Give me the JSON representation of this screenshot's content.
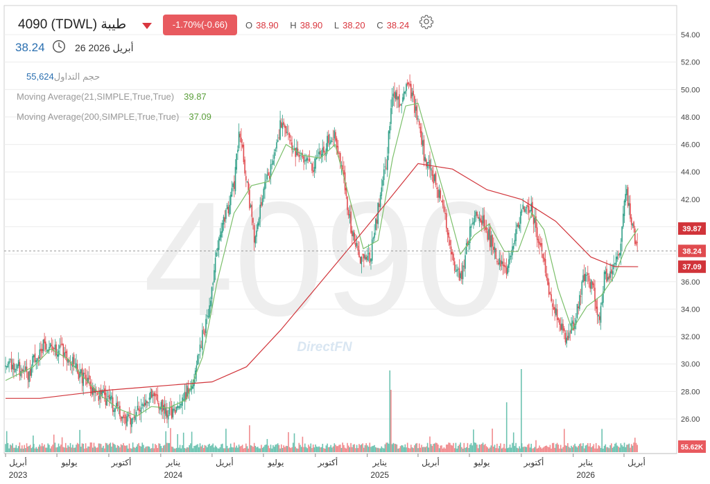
{
  "header": {
    "symbol": "4090  (TDWL)  طيبة",
    "change": "-1.70%(-0.66)",
    "ohlc": [
      {
        "k": "O",
        "v": "38.90"
      },
      {
        "k": "H",
        "v": "38.90"
      },
      {
        "k": "L",
        "v": "38.20"
      },
      {
        "k": "C",
        "v": "38.24"
      }
    ],
    "last_price": "38.24",
    "date": "26 أبريل 2026"
  },
  "indicators": {
    "volume_label": "حجم التداول",
    "volume_value": "55,624",
    "ma21_label": "Moving Average(21,SIMPLE,True,True)",
    "ma21_value": "39.87",
    "ma200_label": "Moving Average(200,SIMPLE,True,True)",
    "ma200_value": "37.09"
  },
  "watermark": {
    "big": "4090",
    "brand": "DirectFN"
  },
  "tags": {
    "ma21": "39.87",
    "last": "38.24",
    "ma200": "37.09",
    "volume": "55.62K"
  },
  "colors": {
    "up": "#2e9e86",
    "down": "#e04b4f",
    "ma21": "#7bbf6a",
    "ma200": "#d1343a",
    "accent_blue": "#2a6fb0",
    "volume_up": "#6cc2b0",
    "volume_down": "#f08a8d"
  },
  "chart_data": {
    "type": "candlestick",
    "y_ticks": [
      "26.00",
      "28.00",
      "30.00",
      "32.00",
      "34.00",
      "36.00",
      "38.00",
      "40.00",
      "42.00",
      "44.00",
      "46.00",
      "48.00",
      "50.00",
      "52.00",
      "54.00"
    ],
    "ylim": [
      24.7,
      55.7
    ],
    "x_axis": [
      {
        "month": "أبريل",
        "year": "2023",
        "date": "2023-04-01"
      },
      {
        "month": "يوليو",
        "year": "",
        "date": "2023-07-01"
      },
      {
        "month": "أكتوبر",
        "year": "",
        "date": "2023-10-01"
      },
      {
        "month": "يناير",
        "year": "2024",
        "date": "2024-01-01"
      },
      {
        "month": "أبريل",
        "year": "",
        "date": "2024-04-01"
      },
      {
        "month": "يوليو",
        "year": "",
        "date": "2024-07-01"
      },
      {
        "month": "أكتوبر",
        "year": "",
        "date": "2024-10-01"
      },
      {
        "month": "يناير",
        "year": "2025",
        "date": "2025-01-01"
      },
      {
        "month": "أبريل",
        "year": "",
        "date": "2025-04-01"
      },
      {
        "month": "يوليو",
        "year": "",
        "date": "2025-07-01"
      },
      {
        "month": "أكتوبر",
        "year": "",
        "date": "2025-10-01"
      },
      {
        "month": "يناير",
        "year": "2026",
        "date": "2026-01-01"
      },
      {
        "month": "أبريل",
        "year": "",
        "date": "2026-04-01"
      }
    ],
    "close_path": [
      {
        "date": "2023-04-01",
        "close": 29.8
      },
      {
        "date": "2023-04-20",
        "close": 29.9
      },
      {
        "date": "2023-05-10",
        "close": 29.2
      },
      {
        "date": "2023-05-25",
        "close": 30.6
      },
      {
        "date": "2023-06-10",
        "close": 31.6
      },
      {
        "date": "2023-06-25",
        "close": 31.2
      },
      {
        "date": "2023-07-15",
        "close": 30.8
      },
      {
        "date": "2023-08-05",
        "close": 29.6
      },
      {
        "date": "2023-08-25",
        "close": 28.5
      },
      {
        "date": "2023-09-15",
        "close": 27.8
      },
      {
        "date": "2023-10-05",
        "close": 27.2
      },
      {
        "date": "2023-10-25",
        "close": 26.2
      },
      {
        "date": "2023-11-10",
        "close": 25.8
      },
      {
        "date": "2023-11-25",
        "close": 26.8
      },
      {
        "date": "2023-12-10",
        "close": 27.8
      },
      {
        "date": "2023-12-25",
        "close": 27.2
      },
      {
        "date": "2024-01-10",
        "close": 26.3
      },
      {
        "date": "2024-01-25",
        "close": 26.6
      },
      {
        "date": "2024-02-10",
        "close": 27.5
      },
      {
        "date": "2024-02-25",
        "close": 28.6
      },
      {
        "date": "2024-03-10",
        "close": 31.2
      },
      {
        "date": "2024-03-25",
        "close": 33.5
      },
      {
        "date": "2024-04-10",
        "close": 38.5
      },
      {
        "date": "2024-04-25",
        "close": 40.8
      },
      {
        "date": "2024-05-10",
        "close": 43.0
      },
      {
        "date": "2024-05-20",
        "close": 47.2
      },
      {
        "date": "2024-06-01",
        "close": 43.5
      },
      {
        "date": "2024-06-15",
        "close": 39.2
      },
      {
        "date": "2024-06-30",
        "close": 42.4
      },
      {
        "date": "2024-07-15",
        "close": 44.4
      },
      {
        "date": "2024-08-01",
        "close": 47.6
      },
      {
        "date": "2024-08-20",
        "close": 45.8
      },
      {
        "date": "2024-09-10",
        "close": 45.0
      },
      {
        "date": "2024-09-30",
        "close": 44.4
      },
      {
        "date": "2024-10-20",
        "close": 46.0
      },
      {
        "date": "2024-11-05",
        "close": 46.8
      },
      {
        "date": "2024-11-20",
        "close": 43.6
      },
      {
        "date": "2024-12-05",
        "close": 39.5
      },
      {
        "date": "2024-12-20",
        "close": 37.8
      },
      {
        "date": "2025-01-05",
        "close": 37.6
      },
      {
        "date": "2025-01-20",
        "close": 41.2
      },
      {
        "date": "2025-02-05",
        "close": 45.0
      },
      {
        "date": "2025-02-15",
        "close": 50.2
      },
      {
        "date": "2025-03-01",
        "close": 49.0
      },
      {
        "date": "2025-03-15",
        "close": 50.6
      },
      {
        "date": "2025-03-30",
        "close": 48.0
      },
      {
        "date": "2025-04-15",
        "close": 44.6
      },
      {
        "date": "2025-04-30",
        "close": 43.5
      },
      {
        "date": "2025-05-15",
        "close": 41.4
      },
      {
        "date": "2025-06-01",
        "close": 37.6
      },
      {
        "date": "2025-06-15",
        "close": 36.2
      },
      {
        "date": "2025-06-30",
        "close": 39.2
      },
      {
        "date": "2025-07-15",
        "close": 41.2
      },
      {
        "date": "2025-08-01",
        "close": 39.6
      },
      {
        "date": "2025-08-20",
        "close": 37.8
      },
      {
        "date": "2025-09-05",
        "close": 37.0
      },
      {
        "date": "2025-09-20",
        "close": 39.5
      },
      {
        "date": "2025-10-05",
        "close": 41.6
      },
      {
        "date": "2025-10-20",
        "close": 41.2
      },
      {
        "date": "2025-11-05",
        "close": 38.2
      },
      {
        "date": "2025-11-20",
        "close": 35.2
      },
      {
        "date": "2025-12-05",
        "close": 33.5
      },
      {
        "date": "2025-12-20",
        "close": 31.8
      },
      {
        "date": "2026-01-05",
        "close": 33.2
      },
      {
        "date": "2026-01-20",
        "close": 36.5
      },
      {
        "date": "2026-02-05",
        "close": 35.5
      },
      {
        "date": "2026-02-15",
        "close": 33.2
      },
      {
        "date": "2026-02-25",
        "close": 36.2
      },
      {
        "date": "2026-03-10",
        "close": 37.0
      },
      {
        "date": "2026-03-25",
        "close": 38.5
      },
      {
        "date": "2026-04-05",
        "close": 42.8
      },
      {
        "date": "2026-04-15",
        "close": 40.2
      },
      {
        "date": "2026-04-26",
        "close": 38.24
      }
    ],
    "ma21_path": [
      {
        "date": "2023-04-01",
        "value": 28.8
      },
      {
        "date": "2023-05-20",
        "value": 29.8
      },
      {
        "date": "2023-06-20",
        "value": 31.1
      },
      {
        "date": "2023-07-20",
        "value": 30.4
      },
      {
        "date": "2023-08-20",
        "value": 28.9
      },
      {
        "date": "2023-09-20",
        "value": 27.6
      },
      {
        "date": "2023-10-20",
        "value": 26.7
      },
      {
        "date": "2023-11-20",
        "value": 26.2
      },
      {
        "date": "2023-12-15",
        "value": 26.9
      },
      {
        "date": "2024-01-15",
        "value": 26.8
      },
      {
        "date": "2024-02-15",
        "value": 27.4
      },
      {
        "date": "2024-03-15",
        "value": 30.5
      },
      {
        "date": "2024-04-10",
        "value": 36.0
      },
      {
        "date": "2024-05-10",
        "value": 41.0
      },
      {
        "date": "2024-06-10",
        "value": 43.0
      },
      {
        "date": "2024-07-10",
        "value": 43.3
      },
      {
        "date": "2024-08-10",
        "value": 46.0
      },
      {
        "date": "2024-09-10",
        "value": 45.2
      },
      {
        "date": "2024-10-10",
        "value": 45.0
      },
      {
        "date": "2024-11-05",
        "value": 46.0
      },
      {
        "date": "2024-12-01",
        "value": 42.0
      },
      {
        "date": "2024-12-25",
        "value": 38.4
      },
      {
        "date": "2025-01-20",
        "value": 39.0
      },
      {
        "date": "2025-02-15",
        "value": 45.0
      },
      {
        "date": "2025-03-10",
        "value": 48.8
      },
      {
        "date": "2025-04-01",
        "value": 49.0
      },
      {
        "date": "2025-04-25",
        "value": 45.5
      },
      {
        "date": "2025-05-20",
        "value": 42.0
      },
      {
        "date": "2025-06-15",
        "value": 38.0
      },
      {
        "date": "2025-07-10",
        "value": 39.4
      },
      {
        "date": "2025-08-05",
        "value": 40.2
      },
      {
        "date": "2025-09-01",
        "value": 38.2
      },
      {
        "date": "2025-09-25",
        "value": 38.2
      },
      {
        "date": "2025-10-20",
        "value": 41.0
      },
      {
        "date": "2025-11-10",
        "value": 39.8
      },
      {
        "date": "2025-12-05",
        "value": 35.5
      },
      {
        "date": "2025-12-30",
        "value": 32.5
      },
      {
        "date": "2026-01-25",
        "value": 34.2
      },
      {
        "date": "2026-02-20",
        "value": 35.0
      },
      {
        "date": "2026-03-15",
        "value": 36.4
      },
      {
        "date": "2026-04-05",
        "value": 38.6
      },
      {
        "date": "2026-04-26",
        "value": 39.87
      }
    ],
    "ma200_path": [
      {
        "date": "2023-04-01",
        "value": 27.5
      },
      {
        "date": "2023-06-01",
        "value": 27.5
      },
      {
        "date": "2023-08-01",
        "value": 27.8
      },
      {
        "date": "2023-10-01",
        "value": 28.1
      },
      {
        "date": "2023-12-01",
        "value": 28.3
      },
      {
        "date": "2024-02-01",
        "value": 28.5
      },
      {
        "date": "2024-04-01",
        "value": 28.7
      },
      {
        "date": "2024-06-01",
        "value": 29.8
      },
      {
        "date": "2024-08-01",
        "value": 32.5
      },
      {
        "date": "2024-10-01",
        "value": 35.5
      },
      {
        "date": "2024-12-01",
        "value": 38.5
      },
      {
        "date": "2025-02-01",
        "value": 41.6
      },
      {
        "date": "2025-04-01",
        "value": 44.6
      },
      {
        "date": "2025-06-01",
        "value": 44.2
      },
      {
        "date": "2025-08-01",
        "value": 42.7
      },
      {
        "date": "2025-10-01",
        "value": 42.0
      },
      {
        "date": "2025-12-01",
        "value": 40.4
      },
      {
        "date": "2026-02-01",
        "value": 37.8
      },
      {
        "date": "2026-03-15",
        "value": 37.1
      },
      {
        "date": "2026-04-26",
        "value": 37.09
      }
    ]
  }
}
